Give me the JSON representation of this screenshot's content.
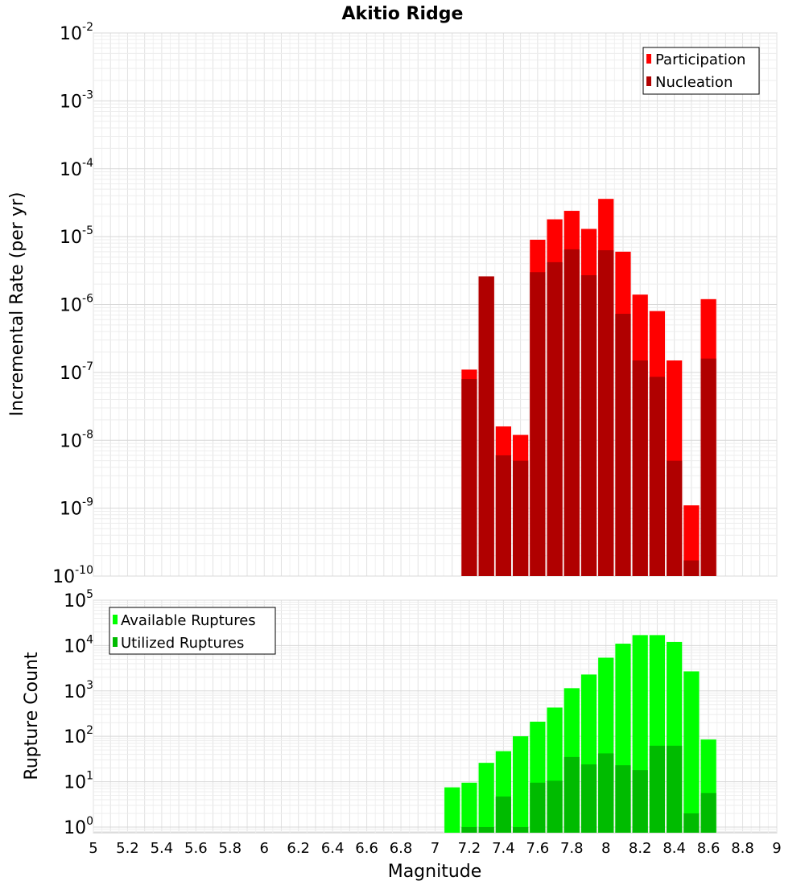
{
  "chart_data": [
    {
      "type": "bar",
      "title": "Akitio Ridge",
      "xlabel": "",
      "ylabel": "Incremental Rate (per yr)",
      "yscale": "log",
      "ylim": [
        1e-10,
        0.01
      ],
      "xlim": [
        5,
        9
      ],
      "y_ticks": [
        {
          "base": "10",
          "exp": "-10"
        },
        {
          "base": "10",
          "exp": "-9"
        },
        {
          "base": "10",
          "exp": "-8"
        },
        {
          "base": "10",
          "exp": "-7"
        },
        {
          "base": "10",
          "exp": "-6"
        },
        {
          "base": "10",
          "exp": "-5"
        },
        {
          "base": "10",
          "exp": "-4"
        },
        {
          "base": "10",
          "exp": "-3"
        },
        {
          "base": "10",
          "exp": "-2"
        }
      ],
      "legend_position": "top-right",
      "x": [
        7.2,
        7.3,
        7.4,
        7.5,
        7.6,
        7.7,
        7.8,
        7.9,
        8.0,
        8.1,
        8.2,
        8.3,
        8.4,
        8.5,
        8.6
      ],
      "series": [
        {
          "name": "Participation",
          "color": "#ff0000",
          "values": [
            1.1e-07,
            2.6e-06,
            1.6e-08,
            1.2e-08,
            9e-06,
            1.8e-05,
            2.4e-05,
            1.3e-05,
            3.6e-05,
            6e-06,
            1.4e-06,
            8e-07,
            1.5e-07,
            1.1e-09,
            1.2e-06
          ]
        },
        {
          "name": "Nucleation",
          "color": "#b00000",
          "values": [
            8e-08,
            2.6e-06,
            6e-09,
            5e-09,
            3e-06,
            4.2e-06,
            6.5e-06,
            2.7e-06,
            6.3e-06,
            7.3e-07,
            1.5e-07,
            8.6e-08,
            5e-09,
            1.7e-10,
            1.6e-07
          ]
        }
      ]
    },
    {
      "type": "bar",
      "xlabel": "Magnitude",
      "ylabel": "Rupture Count",
      "yscale": "log",
      "ylim": [
        0.75,
        100000
      ],
      "xlim": [
        5,
        9
      ],
      "x_ticks": [
        "5",
        "5.2",
        "5.4",
        "5.6",
        "5.8",
        "6",
        "6.2",
        "6.4",
        "6.6",
        "6.8",
        "7",
        "7.2",
        "7.4",
        "7.6",
        "7.8",
        "8",
        "8.2",
        "8.4",
        "8.6",
        "8.8",
        "9"
      ],
      "y_ticks": [
        {
          "base": "10",
          "exp": "0"
        },
        {
          "base": "10",
          "exp": "1"
        },
        {
          "base": "10",
          "exp": "2"
        },
        {
          "base": "10",
          "exp": "3"
        },
        {
          "base": "10",
          "exp": "4"
        },
        {
          "base": "10",
          "exp": "5"
        }
      ],
      "legend_position": "top-left",
      "x": [
        7.1,
        7.2,
        7.3,
        7.4,
        7.5,
        7.6,
        7.7,
        7.8,
        7.9,
        8.0,
        8.1,
        8.2,
        8.3,
        8.4,
        8.5,
        8.6
      ],
      "series": [
        {
          "name": "Available Ruptures",
          "color": "#00ff00",
          "values": [
            7.5,
            9.5,
            26,
            47,
            100,
            210,
            430,
            1150,
            2300,
            5400,
            11000,
            17000,
            17000,
            12000,
            2700,
            85
          ]
        },
        {
          "name": "Utilized Ruptures",
          "color": "#00bb00",
          "values": [
            0,
            1,
            1,
            4.7,
            1,
            9.5,
            10.5,
            35,
            24,
            42,
            23,
            18,
            62,
            62,
            2,
            5.6
          ]
        }
      ]
    }
  ]
}
